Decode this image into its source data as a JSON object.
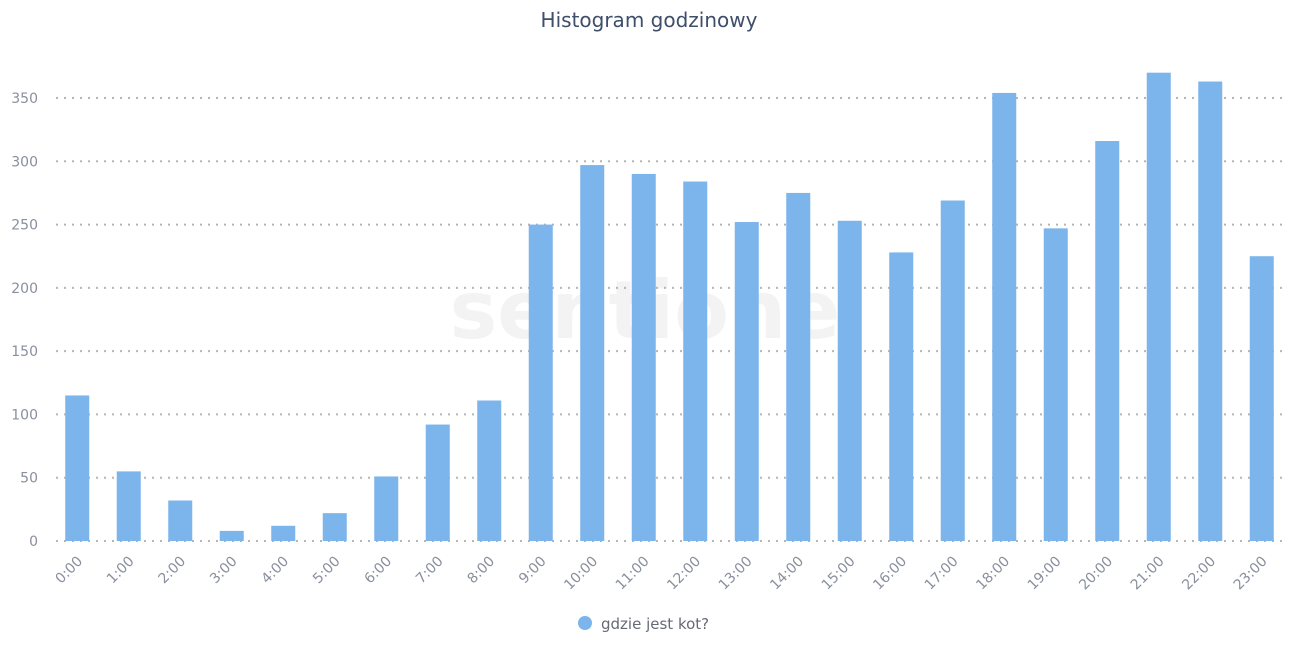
{
  "chart_data": {
    "type": "bar",
    "title": "Histogram godzinowy",
    "categories": [
      "0:00",
      "1:00",
      "2:00",
      "3:00",
      "4:00",
      "5:00",
      "6:00",
      "7:00",
      "8:00",
      "9:00",
      "10:00",
      "11:00",
      "12:00",
      "13:00",
      "14:00",
      "15:00",
      "16:00",
      "17:00",
      "18:00",
      "19:00",
      "20:00",
      "21:00",
      "22:00",
      "23:00"
    ],
    "series": [
      {
        "name": "gdzie jest kot?",
        "color": "#7cb4ec",
        "values": [
          115,
          55,
          32,
          8,
          12,
          22,
          51,
          92,
          111,
          250,
          297,
          290,
          284,
          252,
          275,
          253,
          228,
          269,
          354,
          247,
          316,
          370,
          363,
          225
        ]
      }
    ],
    "ylim": [
      0,
      350
    ],
    "yticks": [
      0,
      50,
      100,
      150,
      200,
      250,
      300,
      350
    ],
    "grid": true,
    "grid_style": "dotted",
    "legend_position": "bottom",
    "xlabel": "",
    "ylabel": ""
  },
  "watermark": "sentione"
}
